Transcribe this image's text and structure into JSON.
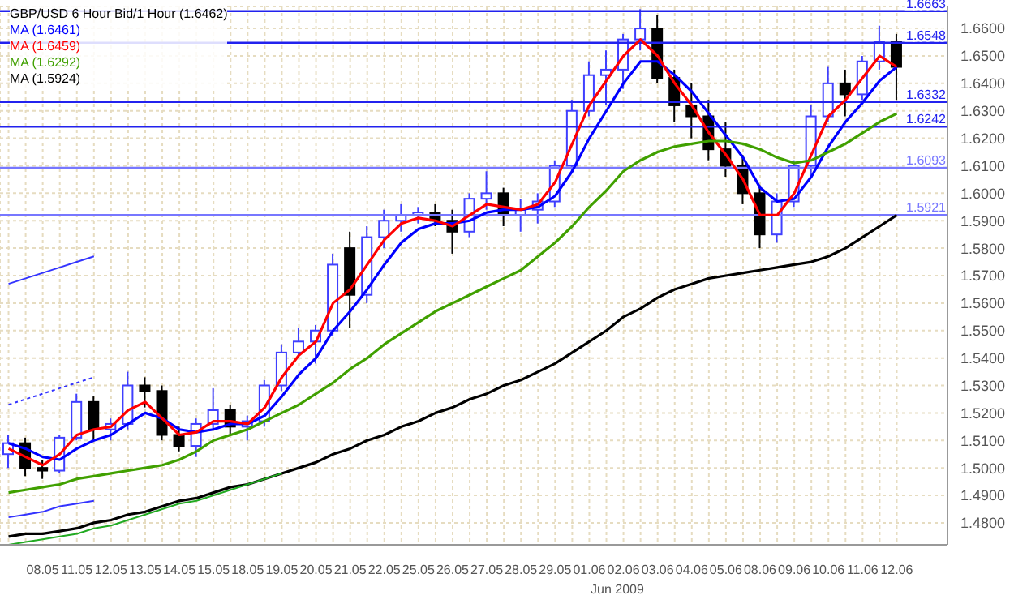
{
  "chart_data": {
    "type": "candlestick",
    "title": "GBP/USD 6 Hour Bid/1 Hour (1.6462)",
    "categories": [
      null,
      null,
      "08.05",
      null,
      "11.05",
      null,
      "12.05",
      null,
      "13.05",
      null,
      "14.05",
      null,
      "15.05",
      null,
      "18.05",
      null,
      "19.05",
      null,
      "20.05",
      null,
      "21.05",
      null,
      "22.05",
      null,
      "25.05",
      null,
      "26.05",
      null,
      "27.05",
      null,
      "28.05",
      null,
      "29.05",
      null,
      "01.06",
      null,
      "02.06",
      null,
      "03.06",
      null,
      "04.06",
      null,
      "05.06",
      null,
      "08.06",
      null,
      "09.06",
      null,
      "10.06",
      null,
      "11.06",
      null,
      "12.06"
    ],
    "ohlc": [
      [
        1.505,
        1.512,
        1.5,
        1.509
      ],
      [
        1.509,
        1.511,
        1.497,
        1.5
      ],
      [
        1.5,
        1.503,
        1.496,
        1.499
      ],
      [
        1.499,
        1.512,
        1.498,
        1.511
      ],
      [
        1.511,
        1.527,
        1.51,
        1.524
      ],
      [
        1.524,
        1.526,
        1.51,
        1.514
      ],
      [
        1.514,
        1.518,
        1.51,
        1.516
      ],
      [
        1.516,
        1.535,
        1.514,
        1.53
      ],
      [
        1.53,
        1.533,
        1.522,
        1.528
      ],
      [
        1.528,
        1.53,
        1.51,
        1.512
      ],
      [
        1.512,
        1.515,
        1.506,
        1.508
      ],
      [
        1.508,
        1.518,
        1.504,
        1.516
      ],
      [
        1.516,
        1.529,
        1.514,
        1.521
      ],
      [
        1.521,
        1.523,
        1.512,
        1.515
      ],
      [
        1.515,
        1.519,
        1.51,
        1.517
      ],
      [
        1.517,
        1.532,
        1.515,
        1.53
      ],
      [
        1.53,
        1.545,
        1.528,
        1.542
      ],
      [
        1.542,
        1.551,
        1.54,
        1.546
      ],
      [
        1.546,
        1.552,
        1.538,
        1.55
      ],
      [
        1.55,
        1.578,
        1.548,
        1.574
      ],
      [
        1.58,
        1.586,
        1.551,
        1.563
      ],
      [
        1.563,
        1.588,
        1.56,
        1.584
      ],
      [
        1.584,
        1.594,
        1.58,
        1.59
      ],
      [
        1.59,
        1.596,
        1.586,
        1.592
      ],
      [
        1.592,
        1.595,
        1.589,
        1.593
      ],
      [
        1.593,
        1.596,
        1.588,
        1.59
      ],
      [
        1.59,
        1.594,
        1.578,
        1.586
      ],
      [
        1.586,
        1.6,
        1.584,
        1.598
      ],
      [
        1.598,
        1.608,
        1.594,
        1.6
      ],
      [
        1.6,
        1.602,
        1.588,
        1.592
      ],
      [
        1.592,
        1.598,
        1.586,
        1.594
      ],
      [
        1.594,
        1.6,
        1.589,
        1.597
      ],
      [
        1.597,
        1.612,
        1.595,
        1.61
      ],
      [
        1.61,
        1.634,
        1.608,
        1.63
      ],
      [
        1.63,
        1.648,
        1.628,
        1.643
      ],
      [
        1.643,
        1.652,
        1.632,
        1.645
      ],
      [
        1.645,
        1.658,
        1.638,
        1.656
      ],
      [
        1.656,
        1.667,
        1.652,
        1.66
      ],
      [
        1.66,
        1.665,
        1.64,
        1.642
      ],
      [
        1.642,
        1.645,
        1.626,
        1.632
      ],
      [
        1.632,
        1.64,
        1.62,
        1.628
      ],
      [
        1.628,
        1.634,
        1.612,
        1.616
      ],
      [
        1.616,
        1.626,
        1.606,
        1.61
      ],
      [
        1.61,
        1.614,
        1.596,
        1.6
      ],
      [
        1.6,
        1.603,
        1.58,
        1.585
      ],
      [
        1.585,
        1.6,
        1.582,
        1.597
      ],
      [
        1.597,
        1.612,
        1.595,
        1.61
      ],
      [
        1.61,
        1.632,
        1.606,
        1.628
      ],
      [
        1.628,
        1.646,
        1.626,
        1.64
      ],
      [
        1.64,
        1.645,
        1.628,
        1.636
      ],
      [
        1.636,
        1.65,
        1.634,
        1.648
      ],
      [
        1.648,
        1.661,
        1.645,
        1.655
      ],
      [
        1.655,
        1.658,
        1.634,
        1.646
      ]
    ],
    "colors": [
      "#3f3fff",
      "#000000",
      "#000000",
      "#3f3fff",
      "#3f3fff",
      "#000000",
      "#3f3fff",
      "#3f3fff",
      "#000000",
      "#000000",
      "#000000",
      "#3f3fff",
      "#3f3fff",
      "#000000",
      "#3f3fff",
      "#3f3fff",
      "#3f3fff",
      "#3f3fff",
      "#3f3fff",
      "#3f3fff",
      "#000000",
      "#3f3fff",
      "#3f3fff",
      "#3f3fff",
      "#3f3fff",
      "#000000",
      "#000000",
      "#3f3fff",
      "#3f3fff",
      "#000000",
      "#3f3fff",
      "#3f3fff",
      "#3f3fff",
      "#3f3fff",
      "#3f3fff",
      "#3f3fff",
      "#3f3fff",
      "#3f3fff",
      "#000000",
      "#000000",
      "#000000",
      "#000000",
      "#000000",
      "#000000",
      "#000000",
      "#3f3fff",
      "#3f3fff",
      "#3f3fff",
      "#3f3fff",
      "#000000",
      "#3f3fff",
      "#3f3fff",
      "#000000"
    ],
    "series": [
      {
        "type": "line",
        "name": "MA (1.6461)",
        "color": "#0000ff",
        "values": [
          1.509,
          1.507,
          1.504,
          1.503,
          1.507,
          1.51,
          1.512,
          1.516,
          1.52,
          1.518,
          1.514,
          1.513,
          1.514,
          1.516,
          1.516,
          1.519,
          1.526,
          1.534,
          1.54,
          1.55,
          1.557,
          1.565,
          1.574,
          1.582,
          1.587,
          1.589,
          1.589,
          1.59,
          1.593,
          1.594,
          1.594,
          1.595,
          1.599,
          1.608,
          1.62,
          1.63,
          1.64,
          1.648,
          1.648,
          1.643,
          1.637,
          1.629,
          1.621,
          1.613,
          1.602,
          1.597,
          1.598,
          1.606,
          1.617,
          1.626,
          1.633,
          1.641,
          1.646
        ]
      },
      {
        "type": "line",
        "name": "MA (1.6459)",
        "color": "#ff0000",
        "values": [
          1.507,
          1.504,
          1.501,
          1.505,
          1.512,
          1.514,
          1.515,
          1.521,
          1.524,
          1.518,
          1.512,
          1.513,
          1.517,
          1.517,
          1.516,
          1.522,
          1.533,
          1.541,
          1.546,
          1.56,
          1.565,
          1.574,
          1.583,
          1.589,
          1.591,
          1.59,
          1.588,
          1.592,
          1.596,
          1.595,
          1.594,
          1.596,
          1.604,
          1.618,
          1.632,
          1.641,
          1.65,
          1.656,
          1.65,
          1.64,
          1.632,
          1.622,
          1.614,
          1.605,
          1.592,
          1.592,
          1.6,
          1.614,
          1.628,
          1.634,
          1.642,
          1.65,
          1.646
        ]
      },
      {
        "type": "line",
        "name": "MA (1.6292)",
        "color": "#40a000",
        "values": [
          1.491,
          1.492,
          1.493,
          1.494,
          1.496,
          1.497,
          1.498,
          1.499,
          1.5,
          1.501,
          1.503,
          1.506,
          1.51,
          1.512,
          1.514,
          1.517,
          1.52,
          1.523,
          1.527,
          1.531,
          1.536,
          1.54,
          1.545,
          1.549,
          1.553,
          1.557,
          1.56,
          1.563,
          1.566,
          1.569,
          1.572,
          1.577,
          1.582,
          1.588,
          1.595,
          1.601,
          1.608,
          1.612,
          1.615,
          1.617,
          1.618,
          1.619,
          1.619,
          1.618,
          1.616,
          1.613,
          1.611,
          1.612,
          1.615,
          1.618,
          1.622,
          1.626,
          1.629
        ]
      },
      {
        "type": "line",
        "name": "MA (1.5924)",
        "color": "#000000",
        "values": [
          1.475,
          1.476,
          1.476,
          1.477,
          1.478,
          1.48,
          1.481,
          1.483,
          1.484,
          1.486,
          1.488,
          1.489,
          1.491,
          1.493,
          1.494,
          1.496,
          1.498,
          1.5,
          1.502,
          1.505,
          1.507,
          1.51,
          1.512,
          1.515,
          1.517,
          1.52,
          1.522,
          1.525,
          1.527,
          1.53,
          1.532,
          1.535,
          1.538,
          1.542,
          1.546,
          1.55,
          1.555,
          1.558,
          1.562,
          1.565,
          1.567,
          1.569,
          1.57,
          1.571,
          1.572,
          1.573,
          1.574,
          1.575,
          1.577,
          1.58,
          1.584,
          1.588,
          1.592
        ]
      },
      {
        "type": "line",
        "color": "#22aa22",
        "values": [
          1.472,
          1.473,
          1.474,
          1.475,
          1.476,
          1.478,
          1.479,
          1.481,
          1.483,
          1.485,
          1.487,
          1.488,
          1.49,
          1.492,
          1.494,
          1.496,
          1.498,
          null,
          null,
          null,
          null,
          null,
          null,
          null,
          null,
          null,
          null,
          null,
          null,
          null,
          null,
          null,
          null,
          null,
          null,
          null,
          null,
          null,
          null,
          null,
          null,
          null,
          null,
          null,
          null,
          null,
          null,
          null,
          null,
          null,
          null,
          null,
          null
        ]
      },
      {
        "type": "line",
        "color": "#3333ff",
        "values": [
          1.567,
          1.569,
          1.571,
          1.573,
          1.575,
          1.577,
          null,
          null,
          null,
          null,
          null,
          null,
          null,
          null,
          null,
          null,
          null,
          null,
          null,
          null,
          null,
          null,
          null,
          null,
          null,
          null,
          null,
          null,
          null,
          null,
          null,
          null,
          null,
          null,
          null,
          null,
          null,
          null,
          null,
          null,
          null,
          null,
          null,
          null,
          null,
          null,
          null,
          null,
          null,
          null,
          null,
          null,
          null
        ]
      },
      {
        "type": "line",
        "color": "#3333ff",
        "line_style": "dotted",
        "values": [
          1.523,
          1.525,
          1.527,
          1.529,
          1.531,
          1.533,
          null,
          null,
          null,
          null,
          null,
          null,
          null,
          null,
          null,
          null,
          null,
          null,
          null,
          null,
          null,
          null,
          null,
          null,
          null,
          null,
          null,
          null,
          null,
          null,
          null,
          null,
          null,
          null,
          null,
          null,
          null,
          null,
          null,
          null,
          null,
          null,
          null,
          null,
          null,
          null,
          null,
          null,
          null,
          null,
          null,
          null,
          null
        ]
      },
      {
        "type": "line",
        "color": "#3333ff",
        "values": [
          1.482,
          1.483,
          1.484,
          1.486,
          1.487,
          1.488,
          null,
          null,
          null,
          null,
          null,
          null,
          null,
          null,
          null,
          null,
          null,
          null,
          null,
          null,
          null,
          null,
          null,
          null,
          null,
          null,
          null,
          null,
          null,
          null,
          null,
          null,
          null,
          null,
          null,
          null,
          null,
          null,
          null,
          null,
          null,
          null,
          null,
          null,
          null,
          null,
          null,
          null,
          null,
          null,
          null,
          null,
          null
        ]
      }
    ],
    "ylim": [
      1.472,
      1.668
    ],
    "yticks": [
      {
        "value": 1.48,
        "label": "1.4800"
      },
      {
        "value": 1.49,
        "label": "1.4900"
      },
      {
        "value": 1.5,
        "label": "1.5000"
      },
      {
        "value": 1.51,
        "label": "1.5100"
      },
      {
        "value": 1.52,
        "label": "1.5200"
      },
      {
        "value": 1.53,
        "label": "1.5300"
      },
      {
        "value": 1.54,
        "label": "1.5400"
      },
      {
        "value": 1.55,
        "label": "1.5500"
      },
      {
        "value": 1.56,
        "label": "1.5600"
      },
      {
        "value": 1.57,
        "label": "1.5700"
      },
      {
        "value": 1.58,
        "label": "1.5800"
      },
      {
        "value": 1.59,
        "label": "1.5900"
      },
      {
        "value": 1.6,
        "label": "1.6000"
      },
      {
        "value": 1.61,
        "label": "1.6100"
      },
      {
        "value": 1.62,
        "label": "1.6200"
      },
      {
        "value": 1.63,
        "label": "1.6300"
      },
      {
        "value": 1.64,
        "label": "1.6400"
      },
      {
        "value": 1.65,
        "label": "1.6500"
      },
      {
        "value": 1.66,
        "label": "1.6600"
      }
    ],
    "ref_lines": [
      {
        "axis": "y",
        "value": 1.6663,
        "label": "1.6663",
        "color": "#2222ee"
      },
      {
        "axis": "y",
        "value": 1.6548,
        "label": "1.6548",
        "color": "#2222ee"
      },
      {
        "axis": "y",
        "value": 1.6332,
        "label": "1.6332",
        "color": "#2222ee"
      },
      {
        "axis": "y",
        "value": 1.6242,
        "label": "1.6242",
        "color": "#2222ee"
      },
      {
        "axis": "y",
        "value": 1.6093,
        "label": "1.6093",
        "color": "#7777ff"
      },
      {
        "axis": "y",
        "value": 1.5921,
        "label": "1.5921",
        "color": "#7777ff"
      }
    ],
    "annotations": [
      "Jun 2009"
    ],
    "grid": true,
    "legend": "top left"
  }
}
